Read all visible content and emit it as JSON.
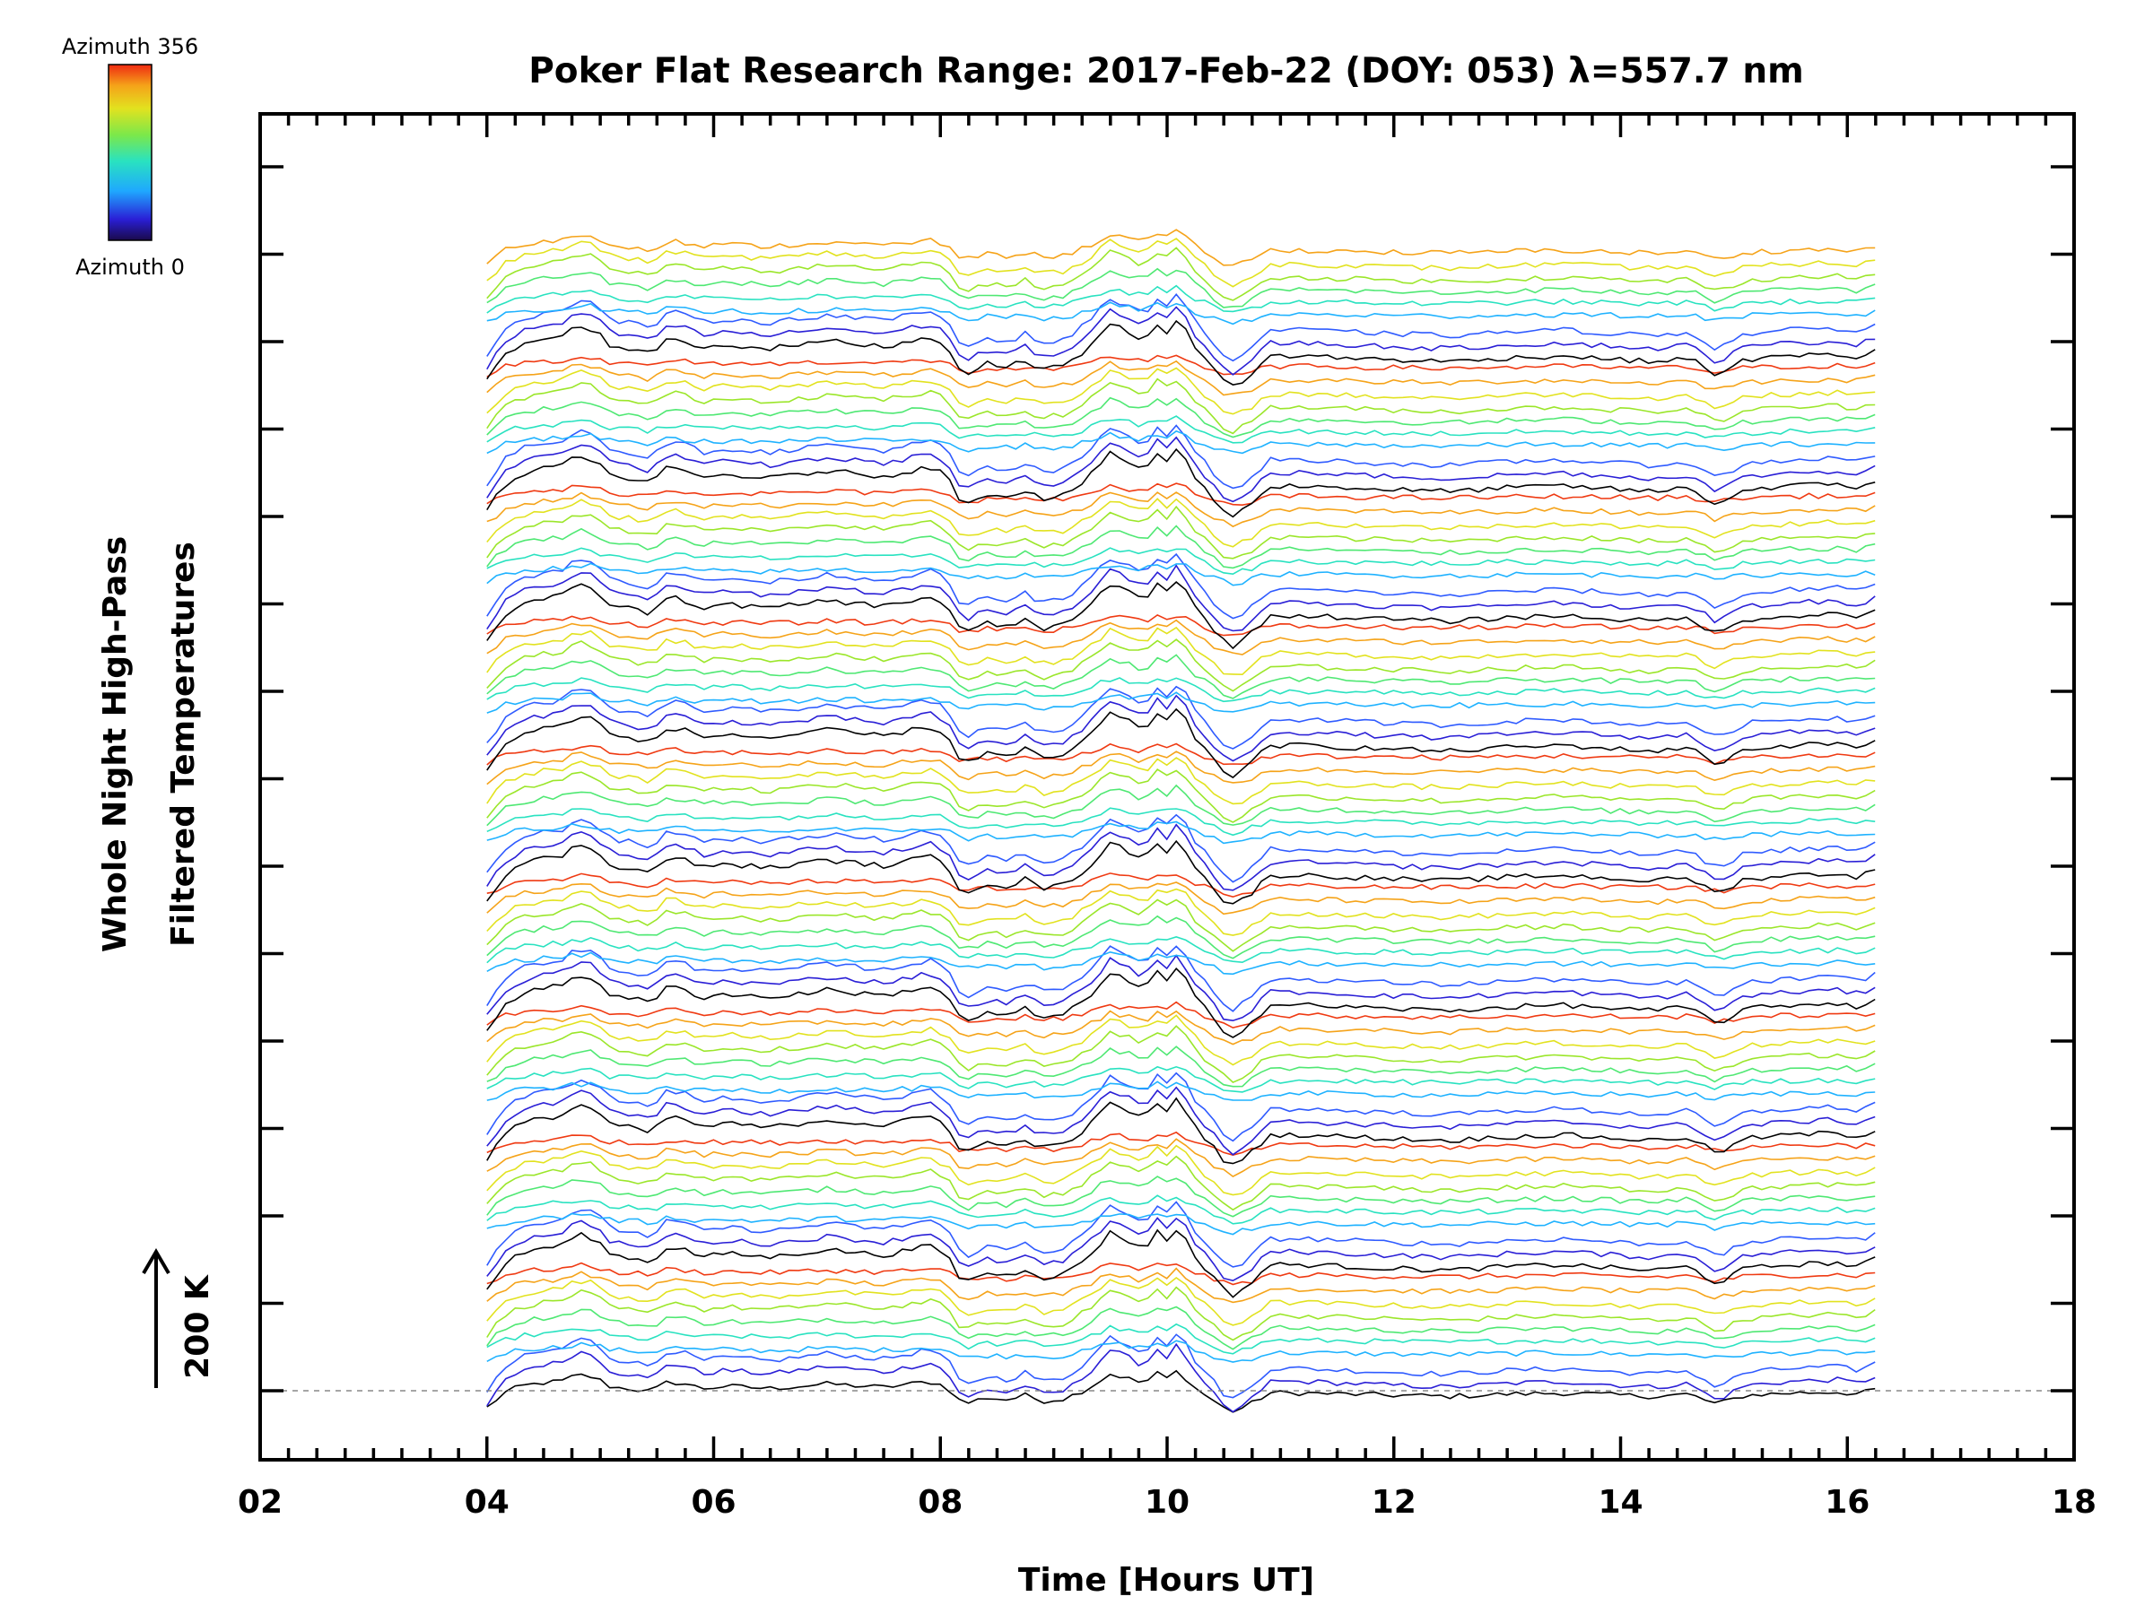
{
  "chart_data": {
    "type": "line",
    "title": "Poker Flat Research Range: 2017-Feb-22 (DOY: 053) λ=557.7 nm",
    "xlabel": "Time [Hours UT]",
    "ylabel_line1": "Whole Night High-Pass",
    "ylabel_line2": "Filtered Temperatures",
    "xlim": [
      2,
      18
    ],
    "x_ticks": [
      "02",
      "04",
      "06",
      "08",
      "10",
      "12",
      "14",
      "16",
      "18"
    ],
    "x_tick_values": [
      2,
      4,
      6,
      8,
      10,
      12,
      14,
      16,
      18
    ],
    "scale_label": "200 K",
    "scale_value_K": 200,
    "colorbar": {
      "top_label": "Azimuth 356",
      "bottom_label": "Azimuth 0",
      "min": 0,
      "max": 356,
      "colormap": "rainbow"
    },
    "series_count": 89,
    "series_offset_K": 31,
    "series_color_cycle": [
      "#000000",
      "#2a1fd6",
      "#2f5bff",
      "#1fb2ff",
      "#29e2c0",
      "#4fe873",
      "#9be62a",
      "#e2e21f",
      "#f5a319",
      "#ef3a12"
    ],
    "time_range": [
      4.0,
      16.25
    ],
    "baseline_K": 0,
    "template_wave": {
      "x": [
        4.0,
        4.15,
        4.3,
        4.5,
        4.65,
        4.8,
        4.95,
        5.1,
        5.25,
        5.45,
        5.6,
        5.75,
        5.9,
        6.1,
        6.5,
        7.0,
        7.5,
        7.9,
        8.05,
        8.2,
        8.4,
        8.6,
        8.75,
        8.9,
        9.1,
        9.3,
        9.5,
        9.65,
        9.8,
        9.9,
        10.0,
        10.1,
        10.25,
        10.4,
        10.55,
        10.7,
        10.9,
        11.2,
        11.6,
        12.0,
        12.5,
        13.0,
        13.5,
        14.0,
        14.3,
        14.6,
        14.85,
        15.1,
        15.5,
        15.9,
        16.1,
        16.25
      ],
      "y": [
        -75,
        -10,
        20,
        35,
        40,
        70,
        60,
        15,
        10,
        -5,
        40,
        30,
        10,
        20,
        10,
        30,
        15,
        40,
        20,
        -60,
        -30,
        -40,
        -20,
        -45,
        -35,
        10,
        75,
        55,
        30,
        80,
        55,
        90,
        10,
        -40,
        -95,
        -70,
        -10,
        -10,
        -15,
        -20,
        -25,
        -15,
        -10,
        -20,
        -25,
        -15,
        -60,
        -20,
        -10,
        -5,
        -15,
        5
      ]
    },
    "data_notes_omitted": false
  }
}
